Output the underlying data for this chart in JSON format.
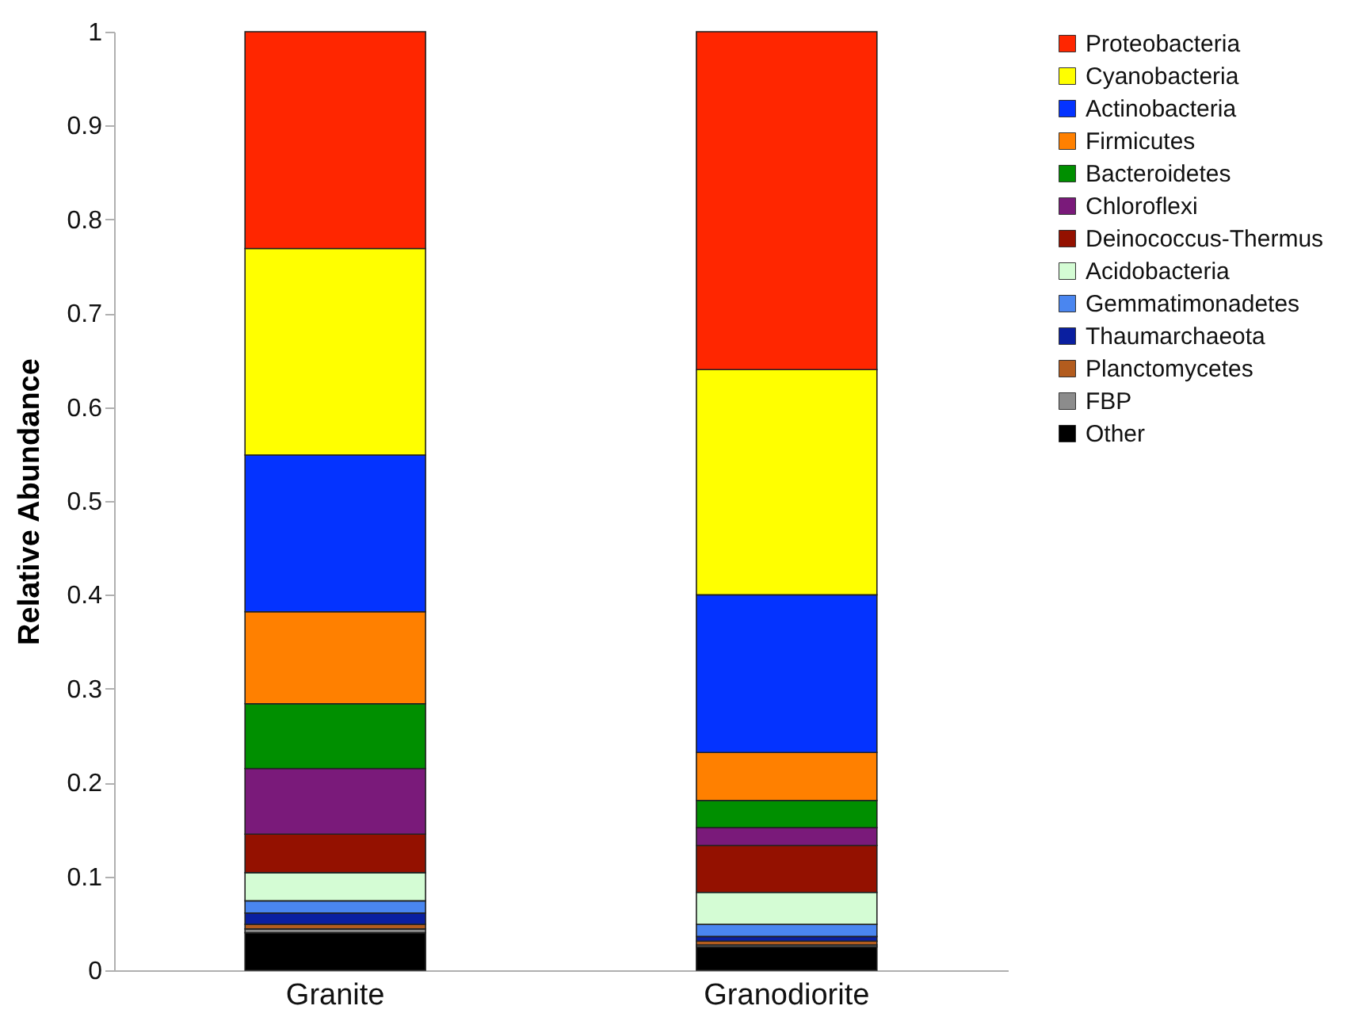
{
  "chart_data": {
    "type": "bar",
    "stacked": true,
    "ylabel": "Relative Abundance",
    "categories": [
      "Granite",
      "Granodiorite"
    ],
    "ylim": [
      0,
      1
    ],
    "yticks": [
      0,
      0.1,
      0.2,
      0.3,
      0.4,
      0.5,
      0.6,
      0.7,
      0.8,
      0.9,
      1
    ],
    "grid": false,
    "legend": "right",
    "series": [
      {
        "name": "Other",
        "color": "#000000",
        "values": [
          0.04,
          0.025
        ]
      },
      {
        "name": "FBP",
        "color": "#8c8c8c",
        "values": [
          0.004,
          0.002
        ]
      },
      {
        "name": "Planctomycetes",
        "color": "#b35c1e",
        "values": [
          0.005,
          0.004
        ]
      },
      {
        "name": "Thaumarchaeota",
        "color": "#0a1fa0",
        "values": [
          0.012,
          0.005
        ]
      },
      {
        "name": "Gemmatimonadetes",
        "color": "#4a86f0",
        "values": [
          0.013,
          0.013
        ]
      },
      {
        "name": "Acidobacteria",
        "color": "#d4fcd4",
        "values": [
          0.03,
          0.034
        ]
      },
      {
        "name": "Deinococcus-Thermus",
        "color": "#941100",
        "values": [
          0.041,
          0.05
        ]
      },
      {
        "name": "Chloroflexi",
        "color": "#7a1a7a",
        "values": [
          0.07,
          0.019
        ]
      },
      {
        "name": "Bacteroidetes",
        "color": "#008f00",
        "values": [
          0.069,
          0.029
        ]
      },
      {
        "name": "Firmicutes",
        "color": "#ff8000",
        "values": [
          0.098,
          0.051
        ]
      },
      {
        "name": "Actinobacteria",
        "color": "#0433ff",
        "values": [
          0.167,
          0.168
        ]
      },
      {
        "name": "Cyanobacteria",
        "color": "#ffff00",
        "values": [
          0.22,
          0.24
        ]
      },
      {
        "name": "Proteobacteria",
        "color": "#ff2600",
        "values": [
          0.231,
          0.36
        ]
      }
    ]
  }
}
